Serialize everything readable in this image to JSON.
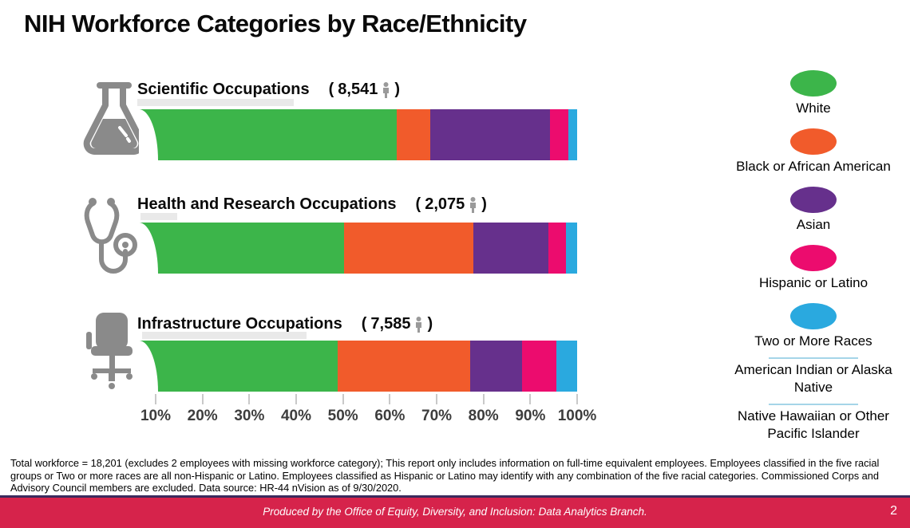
{
  "title": "NIH Workforce Categories by Race/Ethnicity",
  "colors": {
    "green": "#3CB54A",
    "orange": "#F15B2B",
    "purple": "#66308C",
    "pink": "#EC0C6E",
    "blue": "#2AA9DF",
    "footer_red": "#D6234B",
    "divider_purple": "#3B2A5D",
    "legend_underline": "#A5D5E8",
    "icon_gray": "#8A8A8A",
    "axis_text": "#3D3D3D"
  },
  "chart_data": {
    "type": "bar",
    "stacked": true,
    "orientation": "horizontal",
    "unit": "percent",
    "categories": [
      "Scientific Occupations",
      "Health and Research Occupations",
      "Infrastructure Occupations"
    ],
    "counts": [
      "8,541",
      "2,075",
      "7,585"
    ],
    "count_paren_open": "(",
    "count_paren_close": ")",
    "category_icons": [
      "flask-icon",
      "stethoscope-icon",
      "office-chair-icon"
    ],
    "series": [
      {
        "name": "White",
        "color": "#3CB54A",
        "values": [
          58.8,
          46.8,
          45.3
        ]
      },
      {
        "name": "Black or African American",
        "color": "#F15B2B",
        "values": [
          7.7,
          29.4,
          30.3
        ]
      },
      {
        "name": "Asian",
        "color": "#66308C",
        "values": [
          27.3,
          17.2,
          11.9
        ]
      },
      {
        "name": "Hispanic or Latino",
        "color": "#EC0C6E",
        "values": [
          4.2,
          4.0,
          7.7
        ]
      },
      {
        "name": "Two or More Races",
        "color": "#2AA9DF",
        "values": [
          2.0,
          2.6,
          4.8
        ]
      }
    ],
    "x_axis": {
      "ticks": [
        "10%",
        "20%",
        "30%",
        "40%",
        "50%",
        "60%",
        "70%",
        "80%",
        "90%",
        "100%"
      ],
      "range": [
        0,
        100
      ],
      "grid": false
    },
    "legend_position": "right",
    "total_note": "Total workforce = 18,201"
  },
  "legend": {
    "items": [
      {
        "label": "White",
        "color": "#3CB54A",
        "divider_above": false
      },
      {
        "label": "Black or African American",
        "color": "#F15B2B",
        "divider_above": false
      },
      {
        "label": "Asian",
        "color": "#66308C",
        "divider_above": false
      },
      {
        "label": "Hispanic or Latino",
        "color": "#EC0C6E",
        "divider_above": false
      },
      {
        "label": "Two or More Races",
        "color": "#2AA9DF",
        "divider_above": false
      },
      {
        "label": "American Indian or Alaska Native",
        "color": null,
        "divider_above": true
      },
      {
        "label": "Native Hawaiian or Other Pacific Islander",
        "color": null,
        "divider_above": true
      }
    ]
  },
  "footnote": "Total workforce = 18,201 (excludes 2 employees with missing workforce category); This report only includes information on full-time equivalent employees. Employees classified in the five racial groups or Two or more races are all non-Hispanic or Latino. Employees classified as Hispanic or Latino may identify with any combination of the five racial categories.  Commissioned Corps and Advisory Council members are excluded. Data source: HR-44 nVision as of 9/30/2020.",
  "footer": {
    "produced_by": "Produced by the Office of Equity, Diversity, and Inclusion: Data Analytics Branch.",
    "page_number": "2"
  }
}
